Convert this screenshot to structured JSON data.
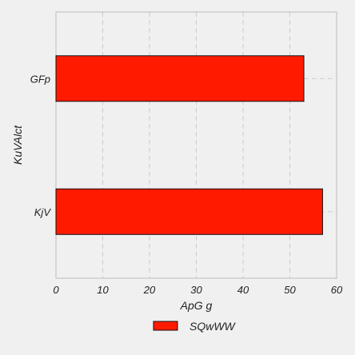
{
  "chart_data": {
    "type": "bar",
    "orientation": "horizontal",
    "categories": [
      "GFp",
      "KjV"
    ],
    "series": [
      {
        "name": "SQwWW",
        "values": [
          53,
          57
        ]
      }
    ],
    "title": "",
    "xlabel": "ApG g",
    "ylabel": "KuVAlct",
    "xlim": [
      0,
      60
    ],
    "xticks": [
      0,
      10,
      20,
      30,
      40,
      50,
      60
    ],
    "grid": true,
    "legend": "bottom-center",
    "colors": {
      "bar_fill": "#ff1a00",
      "bar_edge": "#111111",
      "background": "#f0f0f0",
      "grid": "#cccccc",
      "frame": "#bbbbbb"
    }
  }
}
